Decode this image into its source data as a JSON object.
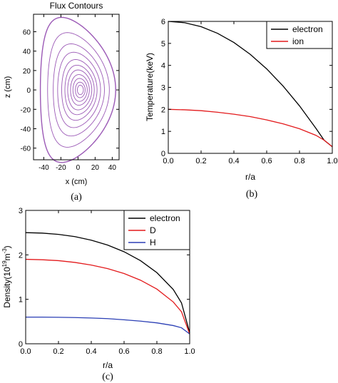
{
  "chart_data": [
    {
      "id": "a",
      "type": "contour",
      "panel_label": "(a)",
      "title": "Flux Contours",
      "xlabel": "x (cm)",
      "ylabel": "z (cm)",
      "xlim": [
        -52,
        48
      ],
      "ylim": [
        -72,
        78
      ],
      "xticks": [
        -40,
        -20,
        0,
        20,
        40
      ],
      "yticks": [
        -60,
        -40,
        -20,
        0,
        20,
        40,
        60
      ],
      "color": "#9b59b6",
      "boundary": {
        "R0": 0,
        "a": 44,
        "kappa": 1.7,
        "delta": 0.45,
        "z0": 0
      },
      "contour_levels": [
        1.0,
        0.82,
        0.68,
        0.57,
        0.47,
        0.39,
        0.32,
        0.25,
        0.19,
        0.13,
        0.08
      ]
    },
    {
      "id": "b",
      "type": "line",
      "panel_label": "(b)",
      "xlabel": "r/a",
      "ylabel": "Temperature(keV)",
      "xlim": [
        0,
        1
      ],
      "ylim": [
        0,
        6
      ],
      "xticks": [
        0.0,
        0.2,
        0.4,
        0.6,
        0.8,
        1.0
      ],
      "yticks": [
        0,
        1,
        2,
        3,
        4,
        5,
        6
      ],
      "legend_position": "top-right",
      "series": [
        {
          "name": "electron",
          "color": "#000000",
          "x": [
            0,
            0.1,
            0.2,
            0.3,
            0.4,
            0.5,
            0.6,
            0.7,
            0.8,
            0.9,
            0.95,
            1.0
          ],
          "y": [
            6.0,
            5.94,
            5.76,
            5.46,
            5.04,
            4.5,
            3.84,
            3.06,
            2.16,
            1.14,
            0.6,
            0.3
          ]
        },
        {
          "name": "ion",
          "color": "#e31a1c",
          "x": [
            0,
            0.1,
            0.2,
            0.3,
            0.4,
            0.5,
            0.6,
            0.7,
            0.8,
            0.9,
            0.95,
            1.0
          ],
          "y": [
            2.0,
            1.98,
            1.94,
            1.87,
            1.78,
            1.67,
            1.52,
            1.34,
            1.12,
            0.82,
            0.6,
            0.3
          ]
        }
      ]
    },
    {
      "id": "c",
      "type": "line",
      "panel_label": "(c)",
      "xlabel": "r/a",
      "ylabel": "Density(10^19m^-3)",
      "ylabel_base": "Density(10",
      "ylabel_exp1": "19",
      "ylabel_mid": "m",
      "ylabel_exp2": "-3",
      "ylabel_end": ")",
      "xlim": [
        0,
        1
      ],
      "ylim": [
        0,
        3
      ],
      "xticks": [
        0.0,
        0.2,
        0.4,
        0.6,
        0.8,
        1.0
      ],
      "yticks": [
        0,
        1,
        2,
        3
      ],
      "legend_position": "top-right",
      "series": [
        {
          "name": "electron",
          "color": "#000000",
          "x": [
            0,
            0.1,
            0.2,
            0.3,
            0.4,
            0.5,
            0.6,
            0.7,
            0.8,
            0.9,
            0.95,
            1.0
          ],
          "y": [
            2.5,
            2.49,
            2.46,
            2.41,
            2.33,
            2.22,
            2.07,
            1.87,
            1.6,
            1.22,
            0.92,
            0.25
          ]
        },
        {
          "name": "D",
          "color": "#e31a1c",
          "x": [
            0,
            0.1,
            0.2,
            0.3,
            0.4,
            0.5,
            0.6,
            0.7,
            0.8,
            0.9,
            0.95,
            1.0
          ],
          "y": [
            1.9,
            1.89,
            1.87,
            1.83,
            1.77,
            1.69,
            1.58,
            1.43,
            1.23,
            0.94,
            0.72,
            0.22
          ]
        },
        {
          "name": "H",
          "color": "#2b3fb5",
          "x": [
            0,
            0.1,
            0.2,
            0.3,
            0.4,
            0.5,
            0.6,
            0.7,
            0.8,
            0.9,
            0.95,
            1.0
          ],
          "y": [
            0.6,
            0.6,
            0.595,
            0.59,
            0.58,
            0.565,
            0.54,
            0.51,
            0.47,
            0.41,
            0.36,
            0.22
          ]
        }
      ]
    }
  ]
}
